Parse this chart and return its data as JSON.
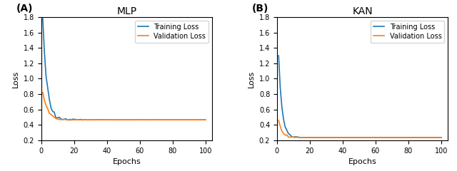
{
  "title_A": "MLP",
  "title_B": "KAN",
  "label_A": "(A)",
  "label_B": "(B)",
  "xlabel": "Epochs",
  "ylabel": "Loss",
  "ylim": [
    0.2,
    1.8
  ],
  "xlim": [
    0,
    104
  ],
  "xticks": [
    0,
    20,
    40,
    60,
    80,
    100
  ],
  "yticks": [
    0.2,
    0.4,
    0.6,
    0.8,
    1.0,
    1.2,
    1.4,
    1.6,
    1.8
  ],
  "training_color": "#1f77b4",
  "validation_color": "#ff7f0e",
  "legend_labels": [
    "Training Loss",
    "Validation Loss"
  ],
  "n_epochs": 100,
  "mlp_train_start": 1.78,
  "mlp_train_end": 0.465,
  "mlp_val_start": 0.82,
  "mlp_val_end": 0.465,
  "kan_train_start": 1.3,
  "kan_train_end": 0.235,
  "kan_val_start": 0.46,
  "kan_val_end": 0.235,
  "line_width": 1.2,
  "legend_fontsize": 7,
  "tick_fontsize": 7,
  "axis_label_fontsize": 8,
  "title_fontsize": 10
}
